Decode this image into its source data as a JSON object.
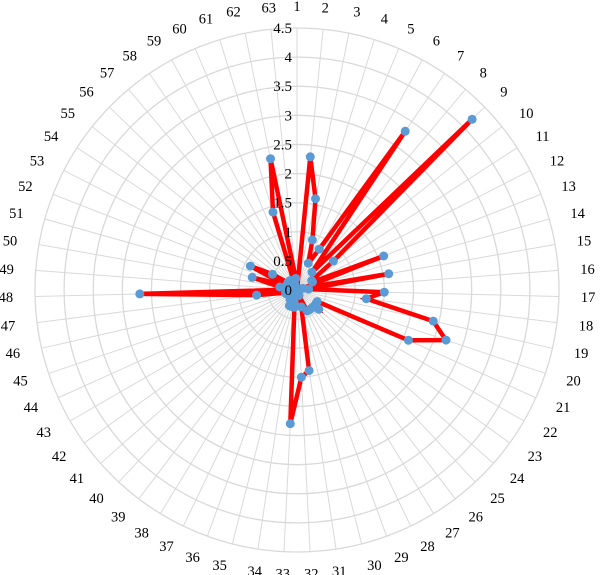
{
  "chart_data": {
    "type": "radar",
    "categories": [
      "1",
      "2",
      "3",
      "4",
      "5",
      "6",
      "7",
      "8",
      "9",
      "10",
      "11",
      "12",
      "13",
      "14",
      "15",
      "16",
      "17",
      "18",
      "19",
      "20",
      "21",
      "22",
      "23",
      "24",
      "25",
      "26",
      "27",
      "28",
      "29",
      "30",
      "31",
      "32",
      "33",
      "34",
      "35",
      "36",
      "37",
      "38",
      "39",
      "40",
      "41",
      "42",
      "43",
      "44",
      "45",
      "46",
      "47",
      "48",
      "49",
      "50",
      "51",
      "52",
      "53",
      "54",
      "55",
      "56",
      "57",
      "58",
      "59",
      "60",
      "61",
      "62",
      "63"
    ],
    "radial_axis": {
      "min": 0,
      "max": 4.5,
      "step": 0.5,
      "tick_labels": [
        "0",
        "0.5",
        "1",
        "1.5",
        "2",
        "2.5",
        "3",
        "3.5",
        "4",
        "4.5"
      ]
    },
    "series": [
      {
        "values": [
          0.0,
          2.3,
          1.6,
          0.9,
          0.5,
          0.8,
          3.3,
          0.4,
          4.2,
          0.8,
          0.3,
          0.3,
          1.6,
          0.1,
          1.6,
          0.2,
          1.5,
          1.2,
          2.4,
          2.7,
          2.1,
          0.4,
          0.4,
          0.5,
          0.4,
          0.4,
          0.4,
          0.4,
          0.1,
          0.3,
          1.4,
          1.5,
          2.3,
          0.3,
          0.2,
          0.3,
          0.3,
          0.1,
          0.2,
          0.1,
          0.1,
          0.0,
          0.1,
          0.1,
          0.2,
          0.2,
          0.7,
          2.7,
          0.1,
          0.3,
          0.8,
          0.2,
          0.9,
          0.5,
          0.2,
          0.1,
          0.2,
          0.2,
          0.1,
          0.1,
          1.4,
          2.3,
          0.2
        ]
      }
    ],
    "colors": {
      "line": "#ff0000",
      "marker": "#5b9bd5",
      "grid": "#d9d9d9"
    },
    "grid": true,
    "legend": "none"
  }
}
